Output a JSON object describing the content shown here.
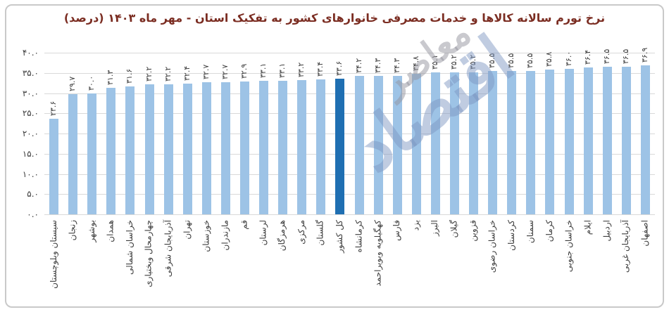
{
  "title": "نرخ تورم سالانه کالاها و خدمات مصرفی خانوارهای کشور به تفکیک استان - مهر ماه ۱۴۰۳ (درصد)",
  "watermark": {
    "line1": "اقتصاد",
    "line2": "معاصر"
  },
  "colors": {
    "bar": "#9DC3E6",
    "highlight_bar": "#1F6FB2",
    "title_text": "#7B2D22",
    "grid": "#D9D9D9",
    "label_text": "#3D3D3D",
    "frame_border": "#C9C9C9"
  },
  "chart_data": {
    "type": "bar",
    "title": "نرخ تورم سالانه کالاها و خدمات مصرفی خانوارهای کشور به تفکیک استان - مهر ماه ۱۴۰۳ (درصد)",
    "xlabel": "",
    "ylabel": "",
    "ylim": [
      0,
      40
    ],
    "grid": "horizontal",
    "legend": "none",
    "categories": [
      "سیستان وبلوچستان",
      "زنجان",
      "بوشهر",
      "همدان",
      "خراسان شمالی",
      "چهارمحال وبختیاری",
      "آذربایجان شرقی",
      "تهران",
      "خوزستان",
      "مازندران",
      "قم",
      "لرستان",
      "هرمزگان",
      "مرکزی",
      "گلستان",
      "کل کشور",
      "کرمانشاه",
      "کهگیلویه وبویراحمد",
      "فارس",
      "یزد",
      "البرز",
      "گیلان",
      "قزوین",
      "خراسان رضوی",
      "کردستان",
      "سمنان",
      "کرمان",
      "خراسان جنوبی",
      "ایلام",
      "اردبیل",
      "آذربایجان غربی",
      "اصفهان"
    ],
    "values": [
      23.6,
      29.7,
      30.0,
      31.3,
      31.6,
      32.2,
      32.2,
      32.4,
      32.7,
      32.7,
      32.9,
      33.1,
      33.1,
      33.2,
      33.4,
      33.6,
      34.2,
      34.3,
      34.3,
      34.8,
      35.1,
      35.2,
      35.2,
      35.5,
      35.5,
      35.5,
      35.8,
      36.0,
      36.4,
      36.5,
      36.5,
      36.9
    ],
    "value_labels": [
      "۲۳.۶",
      "۲۹.۷",
      "۳۰.۰",
      "۳۱.۳",
      "۳۱.۶",
      "۳۲.۲",
      "۳۲.۲",
      "۳۲.۴",
      "۳۲.۷",
      "۳۲.۷",
      "۳۲.۹",
      "۳۳.۱",
      "۳۳.۱",
      "۳۳.۲",
      "۳۳.۴",
      "۳۳.۶",
      "۳۴.۲",
      "۳۴.۳",
      "۳۴.۳",
      "۳۴.۸",
      "۳۵.۱",
      "۳۵.۲",
      "۳۵.۲",
      "۳۵.۵",
      "۳۵.۵",
      "۳۵.۵",
      "۳۵.۸",
      "۳۶.۰",
      "۳۶.۴",
      "۳۶.۵",
      "۳۶.۵",
      "۳۶.۹"
    ],
    "highlight_index": 15,
    "highlight_category": "کل کشور",
    "y_ticks": [
      40,
      35,
      30,
      25,
      20,
      15,
      10,
      5,
      0
    ],
    "y_tick_labels": [
      "۴۰.۰",
      "۳۵.۰",
      "۳۰.۰",
      "۲۵.۰",
      "۲۰.۰",
      "۱۵.۰",
      "۱۰.۰",
      "۵.۰",
      "۰.۰"
    ]
  }
}
